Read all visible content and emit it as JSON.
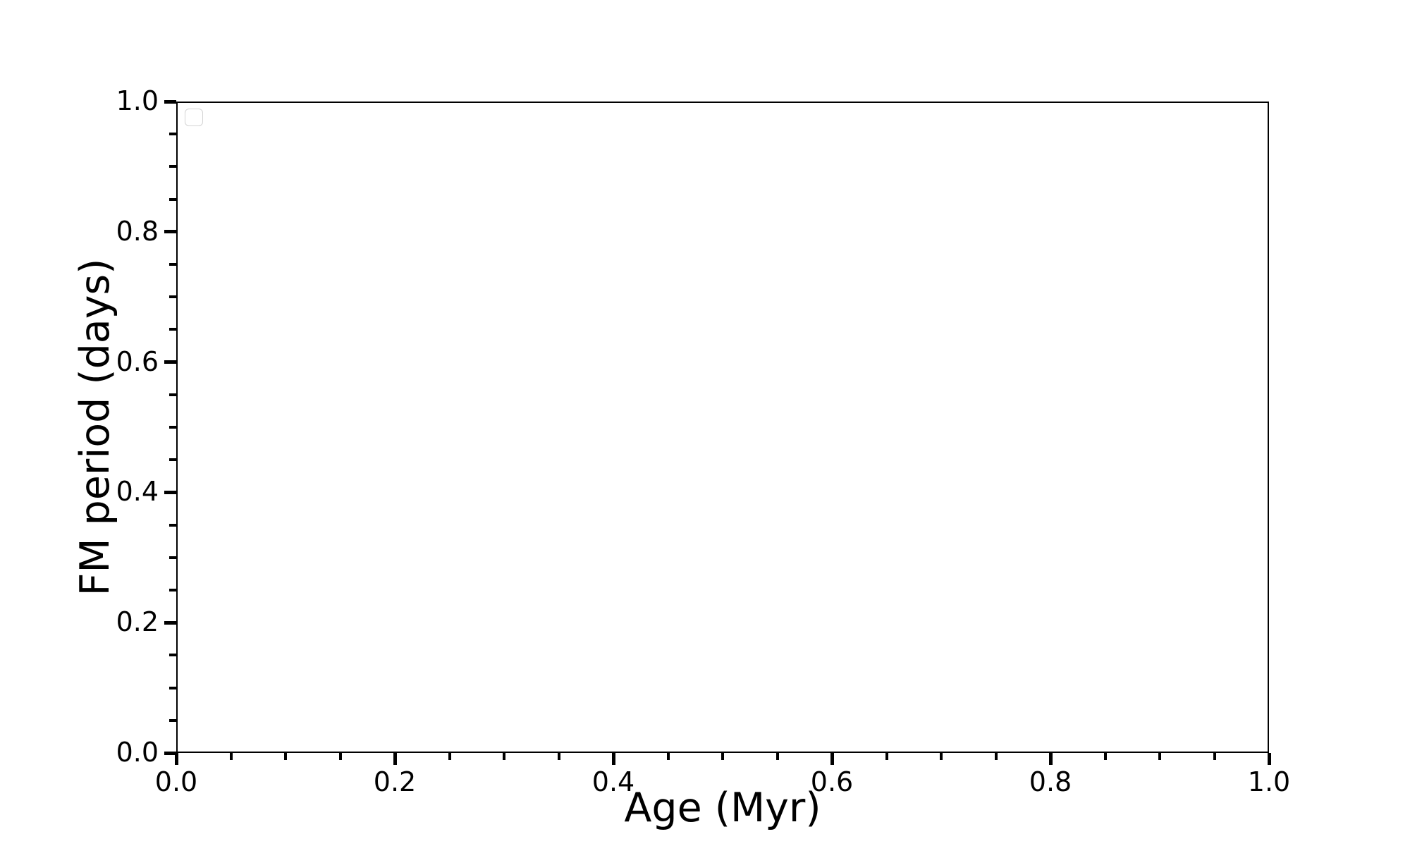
{
  "figure": {
    "background_color": "#ffffff",
    "spine_color": "#000000",
    "tick_color": "#000000",
    "text_color": "#000000",
    "legend_border_color": "#d4d4d4"
  },
  "chart_data": {
    "type": "scatter",
    "title": "",
    "xlabel": "Age (Myr)",
    "ylabel": "FM period (days)",
    "xlim": [
      0.0,
      1.0
    ],
    "ylim": [
      0.0,
      1.0
    ],
    "x_major_ticks": [
      0.0,
      0.2,
      0.4,
      0.6,
      0.8,
      1.0
    ],
    "x_major_tick_labels": [
      "0.0",
      "0.2",
      "0.4",
      "0.6",
      "0.8",
      "1.0"
    ],
    "y_major_ticks": [
      0.0,
      0.2,
      0.4,
      0.6,
      0.8,
      1.0
    ],
    "y_major_tick_labels": [
      "0.0",
      "0.2",
      "0.4",
      "0.6",
      "0.8",
      "1.0"
    ],
    "minor_tick_step": 0.05,
    "grid": false,
    "legend": {
      "visible": true,
      "position": "upper-left",
      "entries": []
    },
    "series": []
  }
}
